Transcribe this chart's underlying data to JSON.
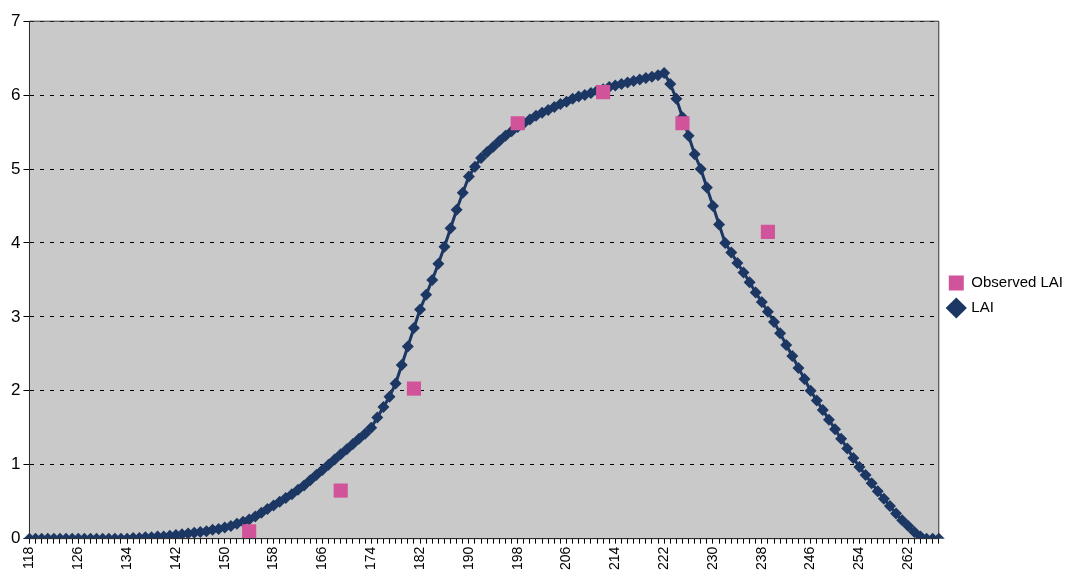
{
  "chart_data": {
    "type": "line",
    "categories": [
      "118",
      null,
      null,
      null,
      null,
      null,
      null,
      null,
      "126",
      null,
      null,
      null,
      null,
      null,
      null,
      null,
      "134",
      null,
      null,
      null,
      null,
      null,
      null,
      null,
      "142",
      null,
      null,
      null,
      null,
      null,
      null,
      null,
      "150",
      null,
      null,
      null,
      null,
      null,
      null,
      null,
      "158",
      null,
      null,
      null,
      null,
      null,
      null,
      null,
      "166",
      null,
      null,
      null,
      null,
      null,
      null,
      null,
      "174",
      null,
      null,
      null,
      null,
      null,
      null,
      null,
      "182",
      null,
      null,
      null,
      null,
      null,
      null,
      null,
      "190",
      null,
      null,
      null,
      null,
      null,
      null,
      null,
      "198",
      null,
      null,
      null,
      null,
      null,
      null,
      null,
      "206",
      null,
      null,
      null,
      null,
      null,
      null,
      null,
      "214",
      null,
      null,
      null,
      null,
      null,
      null,
      null,
      "222",
      null,
      null,
      null,
      null,
      null,
      null,
      null,
      "230",
      null,
      null,
      null,
      null,
      null,
      null,
      null,
      "238",
      null,
      null,
      null,
      null,
      null,
      null,
      null,
      "246",
      null,
      null,
      null,
      null,
      null,
      null,
      null,
      "254",
      null,
      null,
      null,
      null,
      null,
      null,
      null,
      "262",
      null,
      null,
      null,
      null,
      null
    ],
    "series": [
      {
        "name": "LAI",
        "color": "#1c3763",
        "marker": "diamond",
        "values": [
          0,
          0,
          0,
          0,
          0,
          0,
          0,
          0,
          0,
          0,
          0,
          0,
          0,
          0,
          0,
          0,
          0,
          0.01,
          0.01,
          0.02,
          0.02,
          0.03,
          0.03,
          0.04,
          0.05,
          0.06,
          0.07,
          0.08,
          0.09,
          0.1,
          0.12,
          0.13,
          0.15,
          0.17,
          0.2,
          0.23,
          0.26,
          0.3,
          0.35,
          0.4,
          0.45,
          0.5,
          0.55,
          0.6,
          0.66,
          0.72,
          0.79,
          0.86,
          0.93,
          1.0,
          1.07,
          1.14,
          1.21,
          1.28,
          1.35,
          1.42,
          1.5,
          1.64,
          1.78,
          1.92,
          2.1,
          2.35,
          2.6,
          2.85,
          3.1,
          3.3,
          3.5,
          3.72,
          3.95,
          4.2,
          4.45,
          4.68,
          4.9,
          5.03,
          5.15,
          5.23,
          5.3,
          5.38,
          5.45,
          5.51,
          5.57,
          5.62,
          5.67,
          5.72,
          5.76,
          5.8,
          5.84,
          5.88,
          5.91,
          5.95,
          5.98,
          6.0,
          6.03,
          6.06,
          6.08,
          6.11,
          6.13,
          6.15,
          6.17,
          6.19,
          6.21,
          6.23,
          6.25,
          6.27,
          6.3,
          6.15,
          5.95,
          5.7,
          5.45,
          5.2,
          5.0,
          4.75,
          4.5,
          4.25,
          4.0,
          3.87,
          3.73,
          3.6,
          3.47,
          3.33,
          3.2,
          3.07,
          2.93,
          2.78,
          2.62,
          2.47,
          2.31,
          2.16,
          2.0,
          1.87,
          1.74,
          1.61,
          1.48,
          1.35,
          1.22,
          1.09,
          0.97,
          0.86,
          0.75,
          0.64,
          0.54,
          0.44,
          0.34,
          0.25,
          0.17,
          0.09,
          0.03,
          0,
          0,
          0
        ]
      },
      {
        "name": "Observed LAI",
        "type": "scatter",
        "color": "#d1539a",
        "marker": "square",
        "values": [
          null,
          null,
          null,
          null,
          null,
          null,
          null,
          null,
          null,
          null,
          null,
          null,
          null,
          null,
          null,
          null,
          null,
          null,
          null,
          null,
          null,
          null,
          null,
          null,
          null,
          null,
          null,
          null,
          null,
          null,
          null,
          null,
          null,
          null,
          null,
          null,
          0.1,
          null,
          null,
          null,
          null,
          null,
          null,
          null,
          null,
          null,
          null,
          null,
          null,
          null,
          null,
          0.65,
          null,
          null,
          null,
          null,
          null,
          null,
          null,
          null,
          null,
          null,
          null,
          2.03,
          null,
          null,
          null,
          null,
          null,
          null,
          null,
          null,
          null,
          null,
          null,
          null,
          null,
          null,
          null,
          null,
          5.62,
          null,
          null,
          null,
          null,
          null,
          null,
          null,
          null,
          null,
          null,
          null,
          null,
          null,
          6.04,
          null,
          null,
          null,
          null,
          null,
          null,
          null,
          null,
          null,
          null,
          null,
          null,
          5.62,
          null,
          null,
          null,
          null,
          null,
          null,
          null,
          null,
          null,
          null,
          null,
          null,
          null,
          4.15,
          null,
          null,
          null,
          null,
          null,
          null,
          null,
          null,
          null,
          null,
          null,
          null,
          null,
          null,
          null,
          null,
          null,
          null,
          null,
          null,
          null,
          null,
          null,
          null,
          null,
          null,
          null,
          null
        ]
      }
    ],
    "ylim": [
      0,
      7
    ],
    "yticks": [
      0,
      1,
      2,
      3,
      4,
      5,
      6,
      7
    ],
    "grid": "y",
    "legend": "right"
  }
}
